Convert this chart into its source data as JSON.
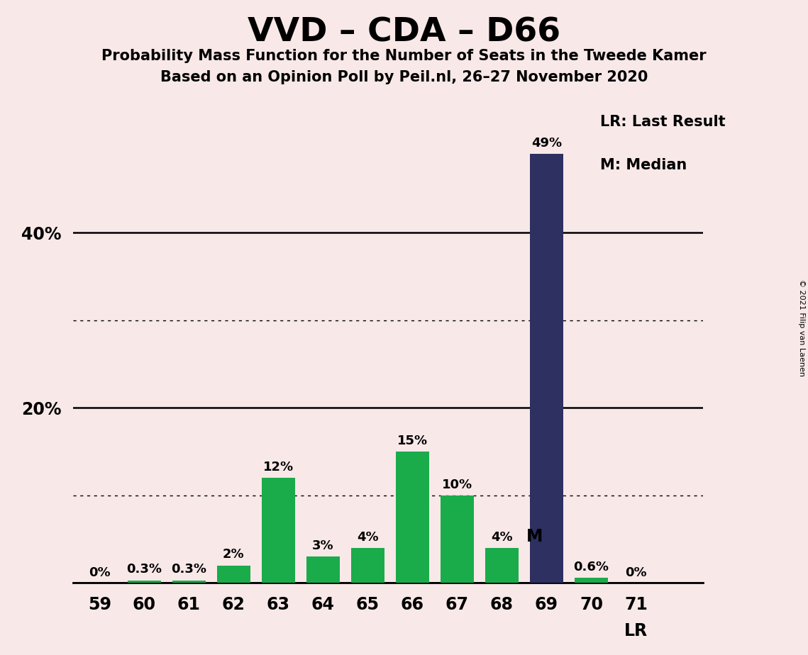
{
  "title": "VVD – CDA – D66",
  "subtitle1": "Probability Mass Function for the Number of Seats in the Tweede Kamer",
  "subtitle2": "Based on an Opinion Poll by Peil.nl, 26–27 November 2020",
  "copyright": "© 2021 Filip van Laenen",
  "categories": [
    59,
    60,
    61,
    62,
    63,
    64,
    65,
    66,
    67,
    68,
    69,
    70,
    71
  ],
  "pmf_values": [
    0.0,
    0.3,
    0.3,
    2.0,
    12.0,
    3.0,
    4.0,
    15.0,
    10.0,
    4.0,
    49.0,
    0.6,
    0.0
  ],
  "pmf_labels": [
    "0%",
    "0.3%",
    "0.3%",
    "2%",
    "12%",
    "3%",
    "4%",
    "15%",
    "10%",
    "4%",
    "49%",
    "0.6%",
    "0%"
  ],
  "last_result_seat": 69,
  "median_seat": 68,
  "bar_color_navy": "#2d3061",
  "bar_color_green": "#1aab4b",
  "background_color": "#f8e8e8",
  "solid_yticks": [
    0,
    20,
    40
  ],
  "dotted_yticks": [
    10,
    30
  ],
  "ylim": [
    0,
    55
  ],
  "legend_lr_text": "LR: Last Result",
  "legend_m_text": "M: Median",
  "lr_label": "LR",
  "m_label": "M"
}
